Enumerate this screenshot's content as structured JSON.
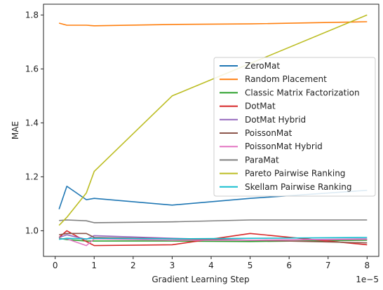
{
  "chart_data": {
    "type": "line",
    "title": "",
    "xlabel": "Gradient Learning Step",
    "ylabel": "MAE",
    "x_scale_label": "1e−5",
    "xlim": [
      -0.3,
      8.3
    ],
    "ylim": [
      0.905,
      1.84
    ],
    "x_ticks": [
      0,
      1,
      2,
      3,
      4,
      5,
      6,
      7,
      8
    ],
    "x_tick_labels": [
      "0",
      "1",
      "2",
      "3",
      "4",
      "5",
      "6",
      "7",
      "8"
    ],
    "y_ticks": [
      1.0,
      1.2,
      1.4,
      1.6,
      1.8
    ],
    "y_tick_labels": [
      "1.0",
      "1.2",
      "1.4",
      "1.6",
      "1.8"
    ],
    "grid": false,
    "legend_position": "center-right",
    "series": [
      {
        "name": "ZeroMat",
        "color": "#1f77b4",
        "x": [
          0.1,
          0.3,
          0.8,
          1,
          3,
          5,
          8
        ],
        "y": [
          1.08,
          1.165,
          1.115,
          1.12,
          1.095,
          1.12,
          1.15
        ]
      },
      {
        "name": "Random Placement",
        "color": "#ff7f0e",
        "x": [
          0.1,
          0.3,
          0.8,
          1,
          3,
          5,
          8
        ],
        "y": [
          1.77,
          1.762,
          1.762,
          1.76,
          1.765,
          1.767,
          1.775
        ]
      },
      {
        "name": "Classic Matrix Factorization",
        "color": "#2ca02c",
        "x": [
          0.1,
          0.3,
          0.8,
          1,
          3,
          5,
          8
        ],
        "y": [
          0.972,
          0.967,
          0.962,
          0.962,
          0.962,
          0.96,
          0.965
        ]
      },
      {
        "name": "DotMat",
        "color": "#d62728",
        "x": [
          0.1,
          0.3,
          0.8,
          1,
          3,
          5,
          8
        ],
        "y": [
          0.975,
          1.0,
          0.96,
          0.945,
          0.948,
          0.99,
          0.948
        ]
      },
      {
        "name": "DotMat Hybrid",
        "color": "#9467bd",
        "x": [
          0.1,
          0.3,
          0.8,
          1,
          3,
          5,
          8
        ],
        "y": [
          0.975,
          0.985,
          0.968,
          0.982,
          0.972,
          0.965,
          0.97
        ]
      },
      {
        "name": "PoissonMat",
        "color": "#8c564b",
        "x": [
          0.1,
          0.3,
          0.8,
          1,
          3,
          5,
          8
        ],
        "y": [
          0.985,
          0.99,
          0.99,
          0.975,
          0.97,
          0.965,
          0.955
        ]
      },
      {
        "name": "PoissonMat Hybrid",
        "color": "#e377c2",
        "x": [
          0.1,
          0.3,
          0.8,
          1,
          3,
          5,
          8
        ],
        "y": [
          0.97,
          0.97,
          0.945,
          0.97,
          0.965,
          0.965,
          0.968
        ]
      },
      {
        "name": "ParaMat",
        "color": "#7f7f7f",
        "x": [
          0.1,
          0.3,
          0.8,
          1,
          3,
          5,
          8
        ],
        "y": [
          1.038,
          1.04,
          1.037,
          1.03,
          1.033,
          1.04,
          1.04
        ]
      },
      {
        "name": "Pareto Pairwise Ranking",
        "color": "#bcbd22",
        "x": [
          0.1,
          0.3,
          0.8,
          1,
          3,
          5,
          8
        ],
        "y": [
          1.02,
          1.05,
          1.14,
          1.22,
          1.5,
          1.62,
          1.8
        ]
      },
      {
        "name": "Skellam Pairwise Ranking",
        "color": "#17becf",
        "x": [
          0.1,
          0.3,
          0.8,
          1,
          3,
          5,
          8
        ],
        "y": [
          0.968,
          0.972,
          0.97,
          0.972,
          0.97,
          0.972,
          0.975
        ]
      }
    ]
  }
}
